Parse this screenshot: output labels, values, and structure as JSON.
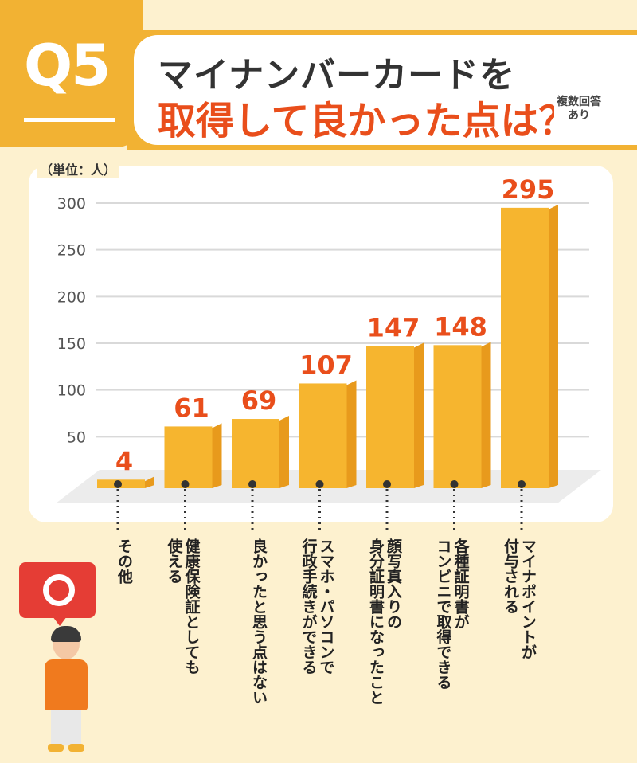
{
  "header": {
    "q_label": "Q5",
    "title_line1": "マイナンバーカードを",
    "title_line2": "取得して良かった点は？",
    "note_line1": "複数回答",
    "note_line2": "あり"
  },
  "colors": {
    "accent": "#f2b233",
    "title_red": "#e94e1b",
    "bar_front": "#f6b52f",
    "bar_side": "#e89a1c",
    "value_label": "#e94e1b",
    "background": "#fdf1cf",
    "bubble": "#e53d35"
  },
  "illustration": {
    "bubble_icon": "circle-ring-icon",
    "person_icon": "person-icon"
  },
  "chart_data": {
    "type": "bar",
    "ylabel": "（単位：人）",
    "ylim": [
      0,
      300
    ],
    "yticks": [
      "50",
      "100",
      "150",
      "200",
      "250",
      "300"
    ],
    "ytick_values": [
      50,
      100,
      150,
      200,
      250,
      300
    ],
    "grid": true,
    "categories": [
      "その他",
      "健康保険証としても使える",
      "良かったと思う点はない",
      "スマホ・パソコンで行政手続きができる",
      "顔写真入りの身分証明書になったこと",
      "各種証明書がコンビニで取得できる",
      "マイナポイントが付与される"
    ],
    "category_lines": [
      [
        "その他"
      ],
      [
        "健康保険証としても",
        "使える"
      ],
      [
        "良かったと思う点はない"
      ],
      [
        "スマホ・パソコンで",
        "行政手続きができる"
      ],
      [
        "顔写真入りの",
        "身分証明書になったこと"
      ],
      [
        "各種証明書が",
        "コンビニで取得できる"
      ],
      [
        "マイナポイントが",
        "付与される"
      ]
    ],
    "values": [
      4,
      61,
      69,
      107,
      147,
      148,
      295
    ],
    "value_labels": [
      "4",
      "61",
      "69",
      "107",
      "147",
      "148",
      "295"
    ]
  }
}
